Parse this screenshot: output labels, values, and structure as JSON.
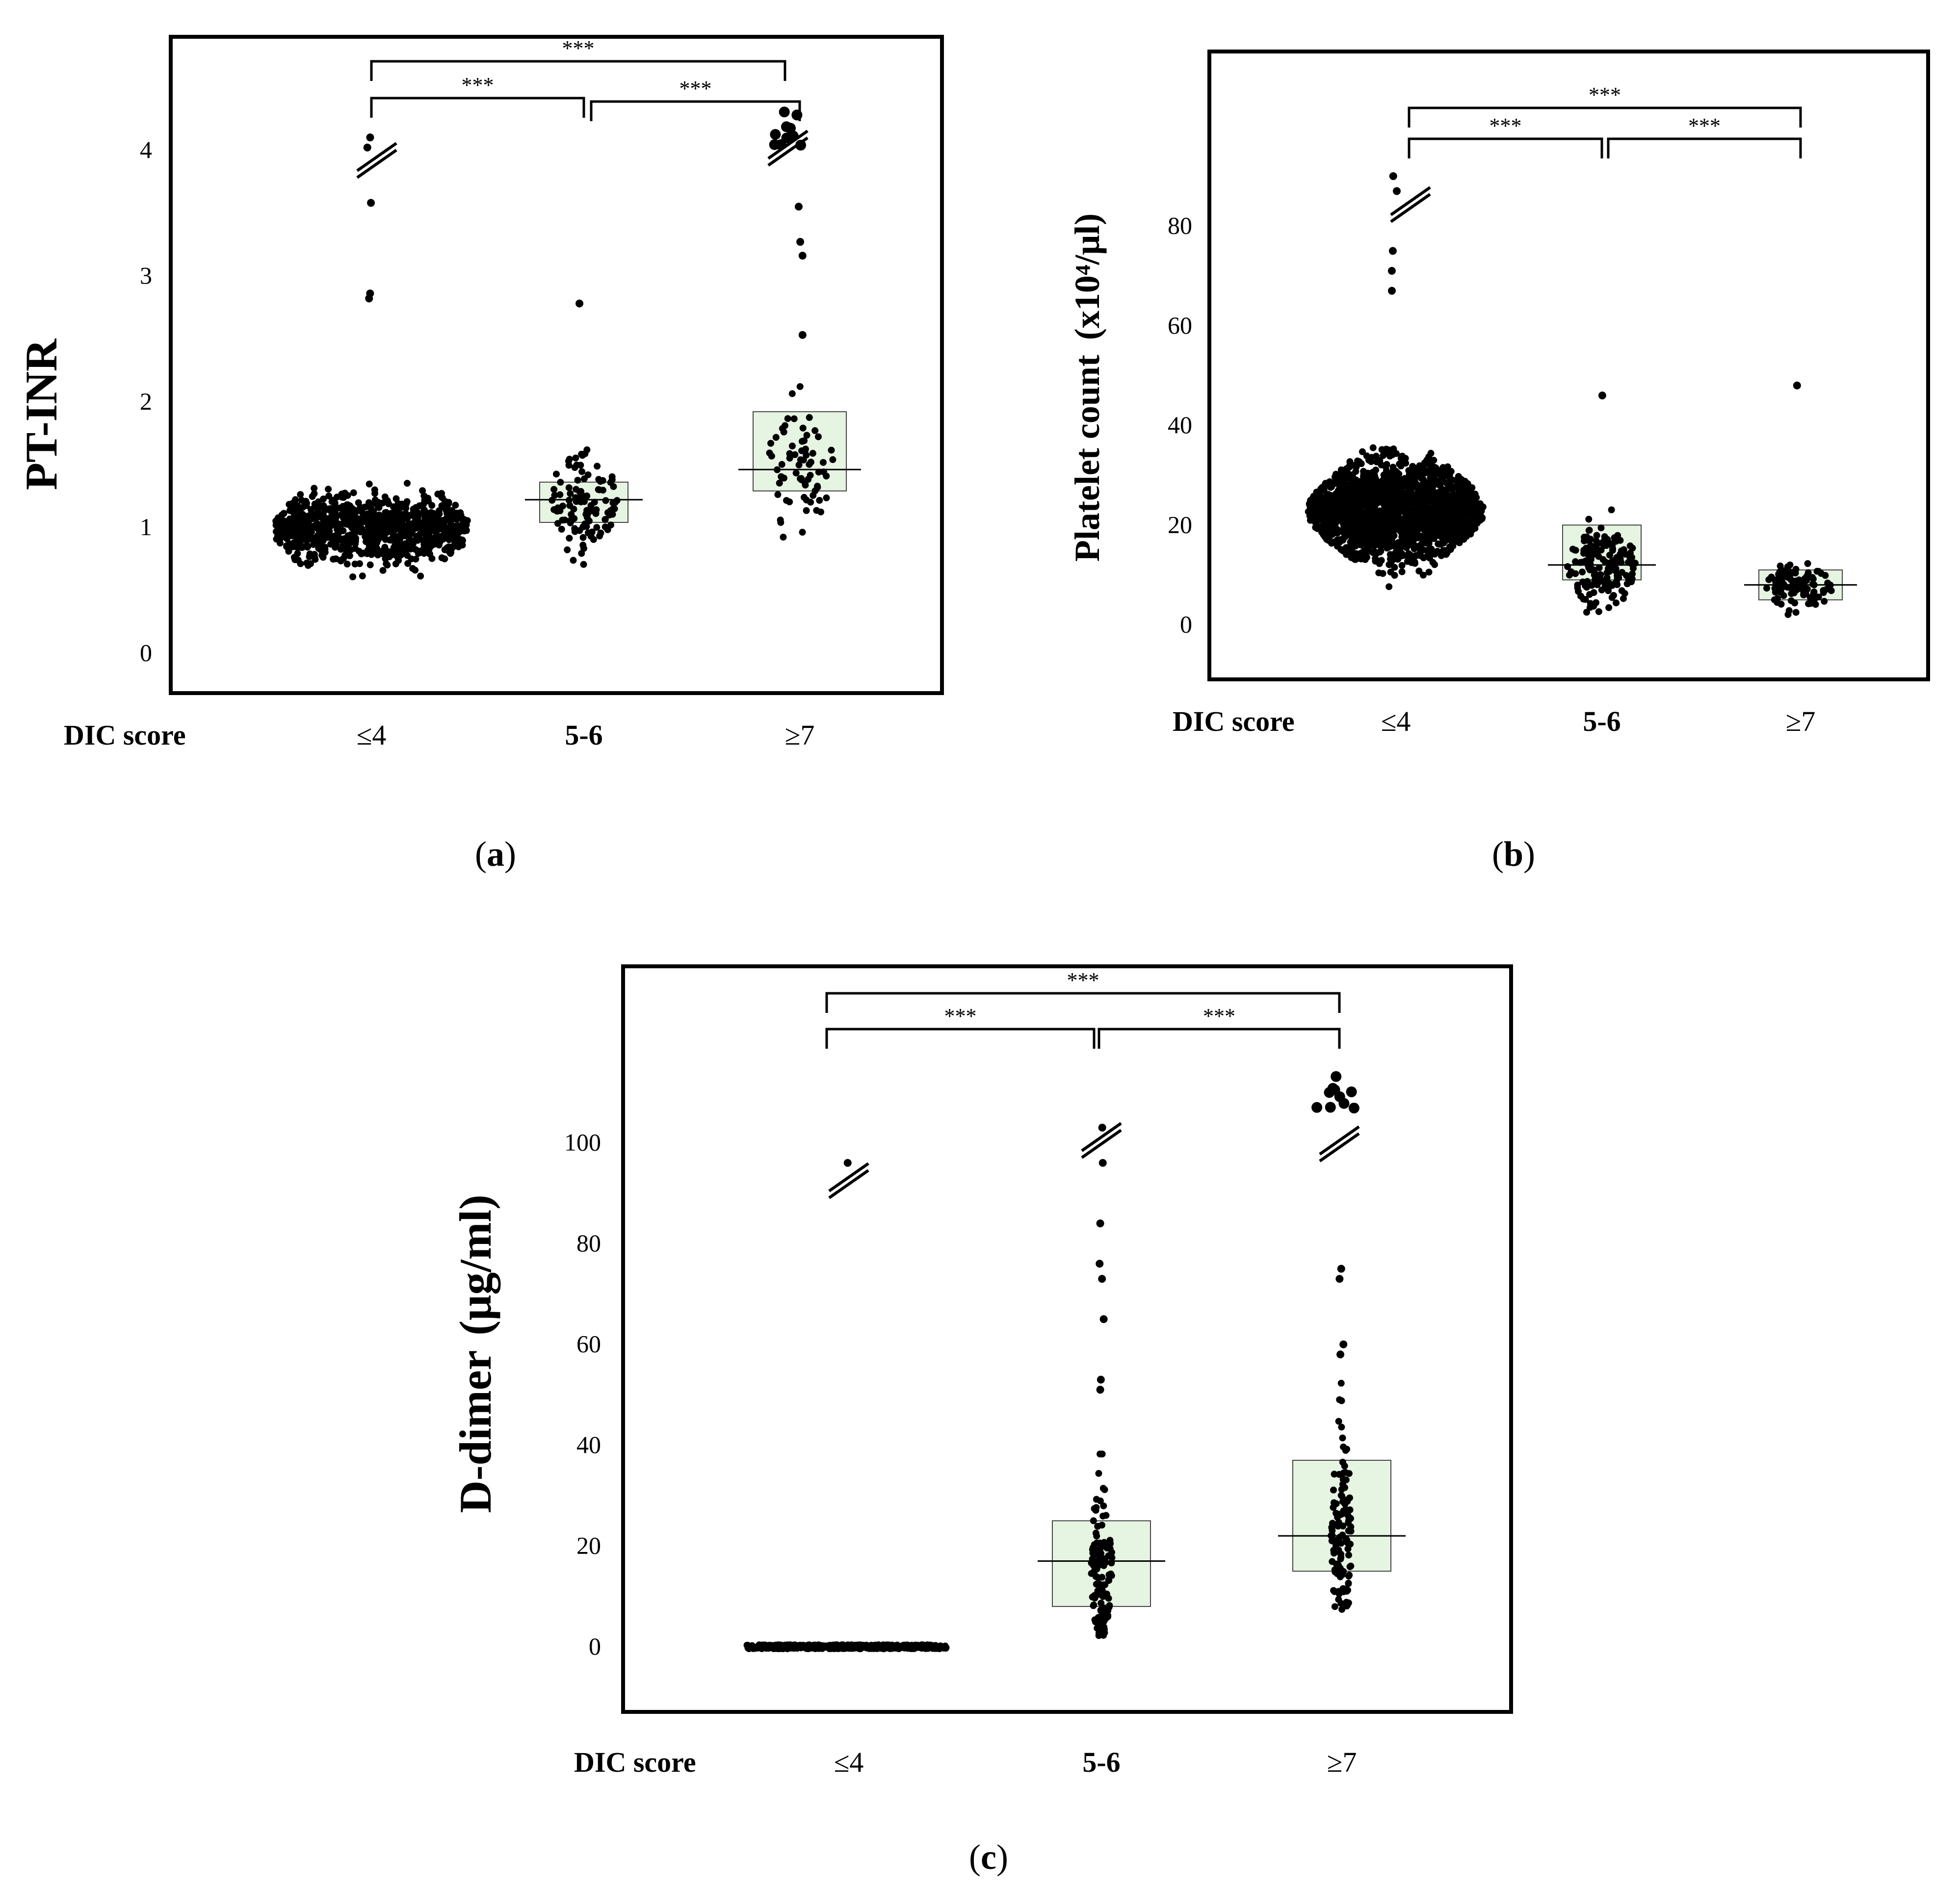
{
  "chart_data": [
    {
      "type": "scatter",
      "panel_label": "a",
      "ylabel": "PT-INR",
      "xlabel": "DIC score",
      "categories": [
        "≤4",
        "5-6",
        "≥7"
      ],
      "yticks": [
        "0",
        "1",
        "2",
        "3",
        "4"
      ],
      "ylim": [
        -0.2,
        4.9
      ],
      "box_q1": [
        0.93,
        1.04,
        1.29
      ],
      "box_median": [
        0.99,
        1.22,
        1.46
      ],
      "box_q3": [
        1.1,
        1.36,
        1.92
      ],
      "outliers_high": [
        [
          4.1,
          4.02,
          3.58,
          2.86,
          2.82
        ],
        [
          2.78
        ],
        [
          3.55,
          3.27,
          3.16,
          2.53
        ]
      ],
      "significance": [
        {
          "from": 0,
          "to": 2,
          "label": "***"
        },
        {
          "from": 0,
          "to": 1,
          "label": "***"
        },
        {
          "from": 1,
          "to": 2,
          "label": "***"
        }
      ]
    },
    {
      "type": "scatter",
      "panel_label": "b",
      "ylabel": "Platelet count",
      "yunit": "(x10⁴/μl)",
      "xlabel": "DIC score",
      "categories": [
        "≤4",
        "5-6",
        "≥7"
      ],
      "yticks": [
        "0",
        "20",
        "40",
        "60",
        "80"
      ],
      "ylim": [
        -8,
        115
      ],
      "box_q1": [
        17,
        9,
        5
      ],
      "box_median": [
        23,
        12,
        8
      ],
      "box_q3": [
        29,
        20,
        11
      ],
      "outliers_high": [
        [
          90,
          87,
          75,
          71,
          67
        ],
        [
          46
        ],
        [
          48
        ]
      ],
      "significance": [
        {
          "from": 0,
          "to": 2,
          "label": "***"
        },
        {
          "from": 0,
          "to": 1,
          "label": "***"
        },
        {
          "from": 1,
          "to": 2,
          "label": "***"
        }
      ]
    },
    {
      "type": "scatter",
      "panel_label": "c",
      "ylabel": "D-dimer",
      "yunit": "(μg/ml)",
      "xlabel": "DIC score",
      "categories": [
        "≤4",
        "5-6",
        "≥7"
      ],
      "yticks": [
        "0",
        "20",
        "40",
        "60",
        "80",
        "100"
      ],
      "ylim": [
        -10,
        135
      ],
      "box_q1": [
        0,
        8,
        15
      ],
      "box_median": [
        0,
        17,
        22
      ],
      "box_q3": [
        1,
        25,
        37
      ],
      "outliers_high": [
        [
          96
        ],
        [
          103,
          96,
          84,
          76,
          73,
          65,
          53,
          51
        ],
        [
          75,
          73,
          60,
          58
        ]
      ],
      "significance": [
        {
          "from": 0,
          "to": 2,
          "label": "***"
        },
        {
          "from": 0,
          "to": 1,
          "label": "***"
        },
        {
          "from": 1,
          "to": 2,
          "label": "***"
        }
      ]
    }
  ]
}
